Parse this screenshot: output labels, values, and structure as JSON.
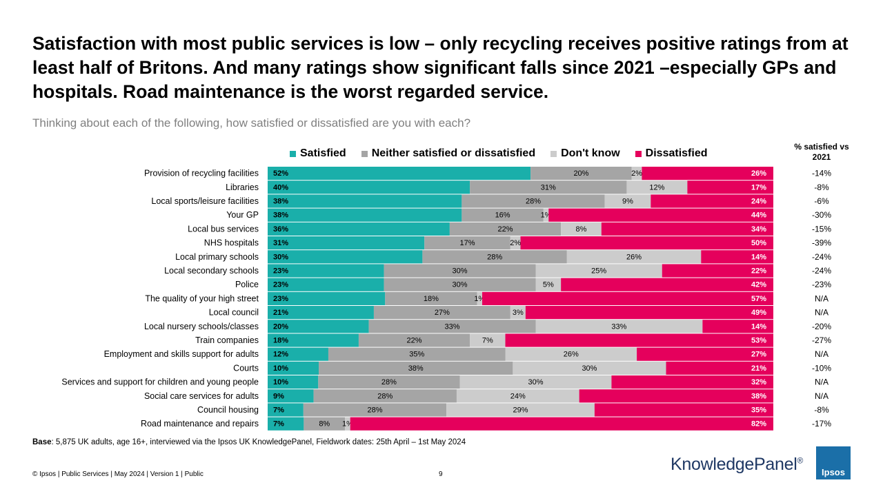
{
  "title": "Satisfaction with most public services is low – only recycling receives positive ratings from at least half of Britons.  And many ratings show significant falls since 2021 –especially GPs and hospitals.  Road maintenance is the worst regarded service.",
  "subtitle": "Thinking about each of the following, how satisfied or dissatisfied are you with each?",
  "column_header": "% satisfied vs 2021",
  "footnote": {
    "label": "Base",
    "text": ": 5,875 UK adults, age 16+, interviewed via the Ipsos UK KnowledgePanel, Fieldwork dates: 25th April – 1st May 2024"
  },
  "footer": "© Ipsos | Public Services | May 2024 | Version 1 | Public",
  "page_number": "9",
  "logos": {
    "knowledgepanel": "KnowledgePanel",
    "registered": "®",
    "ipsos": "Ipsos"
  },
  "chart_data": {
    "type": "bar",
    "orientation": "horizontal-stacked-100",
    "categories": [
      "Provision of recycling facilities",
      "Libraries",
      "Local sports/leisure facilities",
      "Your GP",
      "Local bus services",
      "NHS hospitals",
      "Local primary schools",
      "Local secondary schools",
      "Police",
      "The quality of your high street",
      "Local council",
      "Local nursery schools/classes",
      "Train companies",
      "Employment and skills support for adults",
      "Courts",
      "Services and support for children and young people",
      "Social care services for adults",
      "Council housing",
      "Road maintenance and repairs"
    ],
    "series": [
      {
        "name": "Satisfied",
        "color": "#1aafaa",
        "label_color": "#000000",
        "label_bold": true,
        "label_align": "start",
        "values": [
          52,
          40,
          38,
          38,
          36,
          31,
          30,
          23,
          23,
          23,
          21,
          20,
          18,
          12,
          10,
          10,
          9,
          7,
          7
        ]
      },
      {
        "name": "Neither satisfied or dissatisfied",
        "color": "#a5a5a5",
        "label_color": "#000000",
        "label_bold": false,
        "label_align": "center",
        "values": [
          20,
          31,
          28,
          16,
          22,
          17,
          28,
          30,
          30,
          18,
          27,
          33,
          22,
          35,
          38,
          28,
          28,
          28,
          8
        ]
      },
      {
        "name": "Don't know",
        "color": "#cccccc",
        "label_color": "#000000",
        "label_bold": false,
        "label_align": "center",
        "values": [
          2,
          12,
          9,
          1,
          8,
          2,
          26,
          25,
          5,
          1,
          3,
          33,
          7,
          26,
          30,
          30,
          24,
          29,
          1
        ]
      },
      {
        "name": "Dissatisfied",
        "color": "#e5005c",
        "label_color": "#ffffff",
        "label_bold": true,
        "label_align": "end",
        "values": [
          26,
          17,
          24,
          44,
          34,
          50,
          14,
          22,
          42,
          57,
          49,
          14,
          53,
          27,
          21,
          32,
          38,
          35,
          82
        ]
      }
    ],
    "change_vs_2021": [
      "-14%",
      "-8%",
      "-6%",
      "-30%",
      "-15%",
      "-39%",
      "-24%",
      "-24%",
      "-23%",
      "N/A",
      "N/A",
      "-20%",
      "-27%",
      "N/A",
      "-10%",
      "N/A",
      "N/A",
      "-8%",
      "-17%"
    ],
    "value_suffix": "%",
    "legend_position": "top",
    "grid": false
  }
}
